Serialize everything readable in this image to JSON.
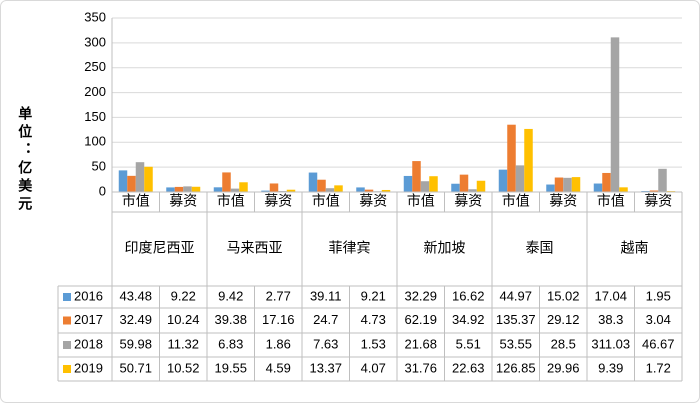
{
  "chart_data": {
    "type": "bar",
    "y_label": "单位：亿美元",
    "categories": [
      "市值",
      "募资",
      "市值",
      "募资",
      "市值",
      "募资",
      "市值",
      "募资",
      "市值",
      "募资",
      "市值",
      "募资"
    ],
    "groups": [
      "印度尼西亚",
      "马来西亚",
      "菲律宾",
      "新加坡",
      "泰国",
      "越南"
    ],
    "series": [
      {
        "name": "2016",
        "color": "#5b9bd5",
        "values": [
          43.48,
          9.22,
          9.42,
          2.77,
          39.11,
          9.21,
          32.29,
          16.62,
          44.97,
          15.02,
          17.04,
          1.95
        ]
      },
      {
        "name": "2017",
        "color": "#ed7d31",
        "values": [
          32.49,
          10.24,
          39.38,
          17.16,
          24.7,
          4.73,
          62.19,
          34.92,
          135.37,
          29.12,
          38.3,
          3.04
        ]
      },
      {
        "name": "2018",
        "color": "#a5a5a5",
        "values": [
          59.98,
          11.32,
          6.83,
          1.86,
          7.63,
          1.53,
          21.68,
          5.51,
          53.55,
          28.5,
          311.03,
          46.67
        ]
      },
      {
        "name": "2019",
        "color": "#ffc000",
        "values": [
          50.71,
          10.52,
          19.55,
          4.59,
          13.37,
          4.07,
          31.76,
          22.63,
          126.85,
          29.96,
          9.39,
          1.72
        ]
      }
    ],
    "ylim": [
      0,
      350
    ],
    "yticks": [
      0,
      50,
      100,
      150,
      200,
      250,
      300,
      350
    ],
    "grid": true
  }
}
